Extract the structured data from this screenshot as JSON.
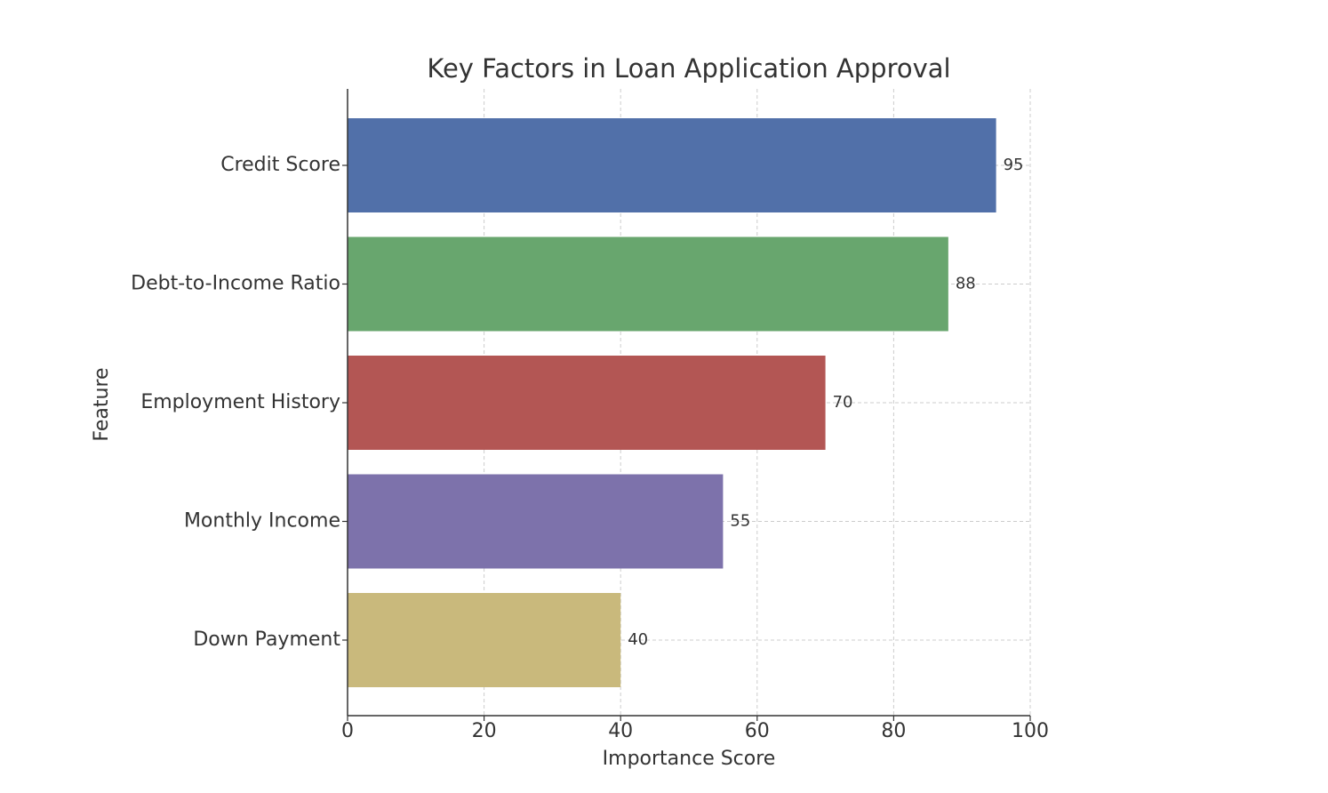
{
  "chart_data": {
    "type": "barh",
    "title": "Key Factors in Loan Application Approval",
    "x_label": "Importance Score",
    "y_label": "Feature",
    "categories": [
      "Credit Score",
      "Debt-to-Income Ratio",
      "Employment History",
      "Monthly Income",
      "Down Payment"
    ],
    "values": [
      95,
      88,
      70,
      55,
      40
    ],
    "colors": [
      "#5170a9",
      "#68a66e",
      "#b35654",
      "#7d72ab",
      "#c9b97c"
    ],
    "xlim": [
      0,
      100
    ],
    "xticks": [
      0,
      20,
      40,
      60,
      80,
      100
    ],
    "grid": true
  }
}
